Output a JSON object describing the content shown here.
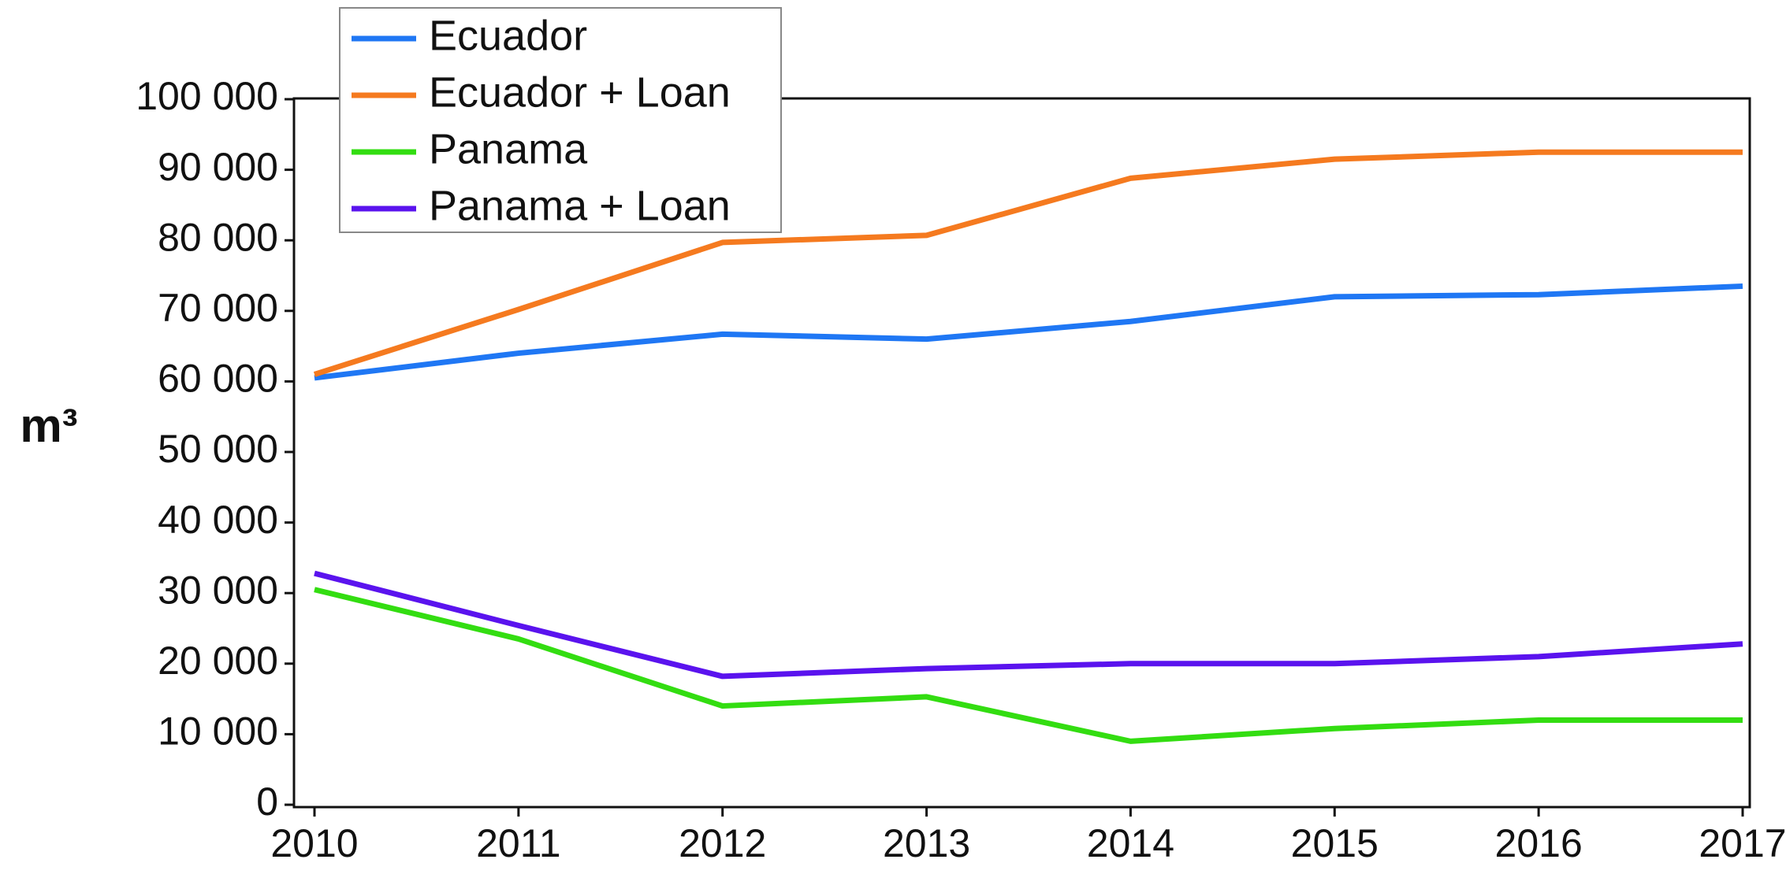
{
  "chart_data": {
    "type": "line",
    "y_label": "m³",
    "categories": [
      "2010",
      "2011",
      "2012",
      "2013",
      "2014",
      "2015",
      "2016",
      "2017"
    ],
    "series": [
      {
        "name": "Ecuador",
        "color": "#1f77f4",
        "values": [
          60500,
          64000,
          66700,
          66000,
          68500,
          72000,
          72300,
          73500
        ]
      },
      {
        "name": "Ecuador + Loan",
        "color": "#f57a1f",
        "values": [
          61000,
          70200,
          79700,
          80700,
          88800,
          91500,
          92500,
          92500
        ]
      },
      {
        "name": "Panama",
        "color": "#33dd11",
        "values": [
          30500,
          23500,
          14000,
          15300,
          9000,
          10800,
          12000,
          12000
        ]
      },
      {
        "name": "Panama + Loan",
        "color": "#5a13ee",
        "values": [
          32800,
          25400,
          18200,
          19300,
          20000,
          20000,
          21000,
          22800
        ]
      }
    ],
    "ylim": [
      0,
      100000
    ],
    "yticks": [
      0,
      {
        "value": 10000,
        "label": "10 000"
      },
      {
        "value": 20000,
        "label": "20 000"
      },
      {
        "value": 30000,
        "label": "30 000"
      },
      {
        "value": 40000,
        "label": "40 000"
      },
      {
        "value": 50000,
        "label": "50 000"
      },
      {
        "value": 60000,
        "label": "60 000"
      },
      {
        "value": 70000,
        "label": "70 000"
      },
      {
        "value": 80000,
        "label": "80 000"
      },
      {
        "value": 90000,
        "label": "90 000"
      },
      {
        "value": 100000,
        "label": "100 000"
      }
    ],
    "grid": false,
    "legend": "top-left"
  }
}
